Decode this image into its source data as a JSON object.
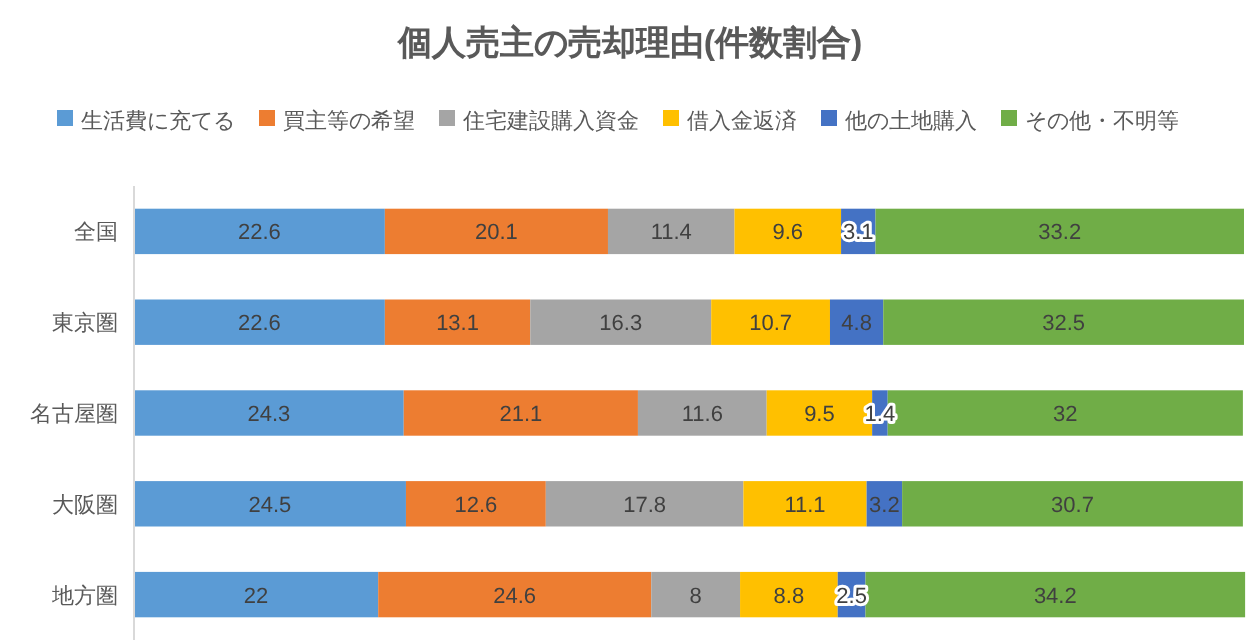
{
  "chart_data": {
    "type": "bar",
    "orientation": "horizontal",
    "stacked": true,
    "title": "個人売主の売却理由(件数割合)",
    "categories": [
      "全国",
      "東京圏",
      "名古屋圏",
      "大阪圏",
      "地方圏"
    ],
    "series": [
      {
        "name": "生活費に充てる",
        "color": "#5b9bd5",
        "values": [
          22.6,
          22.6,
          24.3,
          24.5,
          22
        ]
      },
      {
        "name": "買主等の希望",
        "color": "#ed7d31",
        "values": [
          20.1,
          13.1,
          21.1,
          12.6,
          24.6
        ]
      },
      {
        "name": "住宅建設購入資金",
        "color": "#a5a5a5",
        "values": [
          11.4,
          16.3,
          11.6,
          17.8,
          8
        ]
      },
      {
        "name": "借入金返済",
        "color": "#ffc000",
        "values": [
          9.6,
          10.7,
          9.5,
          11.1,
          8.8
        ]
      },
      {
        "name": "他の土地購入",
        "color": "#4472c4",
        "values": [
          3.1,
          4.8,
          1.4,
          3.2,
          2.5
        ]
      },
      {
        "name": "その他・不明等",
        "color": "#70ad47",
        "values": [
          33.2,
          32.5,
          32,
          30.7,
          34.2
        ]
      }
    ],
    "xlim": [
      0,
      100
    ],
    "tick_labels": "y",
    "data_labels": true,
    "legend": "top"
  }
}
